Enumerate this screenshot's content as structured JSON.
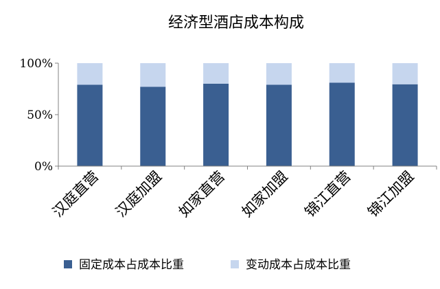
{
  "chart_data": {
    "type": "bar",
    "stacked": true,
    "percent": true,
    "title": "经济型酒店成本构成",
    "categories": [
      "汉庭直营",
      "汉庭加盟",
      "如家直营",
      "如家加盟",
      "锦江直营",
      "锦江加盟"
    ],
    "series": [
      {
        "name": "固定成本占成本比重",
        "values": [
          79,
          77,
          80,
          79,
          81,
          79.5
        ],
        "color": "#3A5F91"
      },
      {
        "name": "变动成本占成本比重",
        "values": [
          21,
          23,
          20,
          21,
          19,
          20.5
        ],
        "color": "#C6D6EE"
      }
    ],
    "yticks": [
      "0%",
      "50%",
      "100%"
    ],
    "ylim": [
      0,
      100
    ],
    "grid": false,
    "legend": "bottom"
  }
}
